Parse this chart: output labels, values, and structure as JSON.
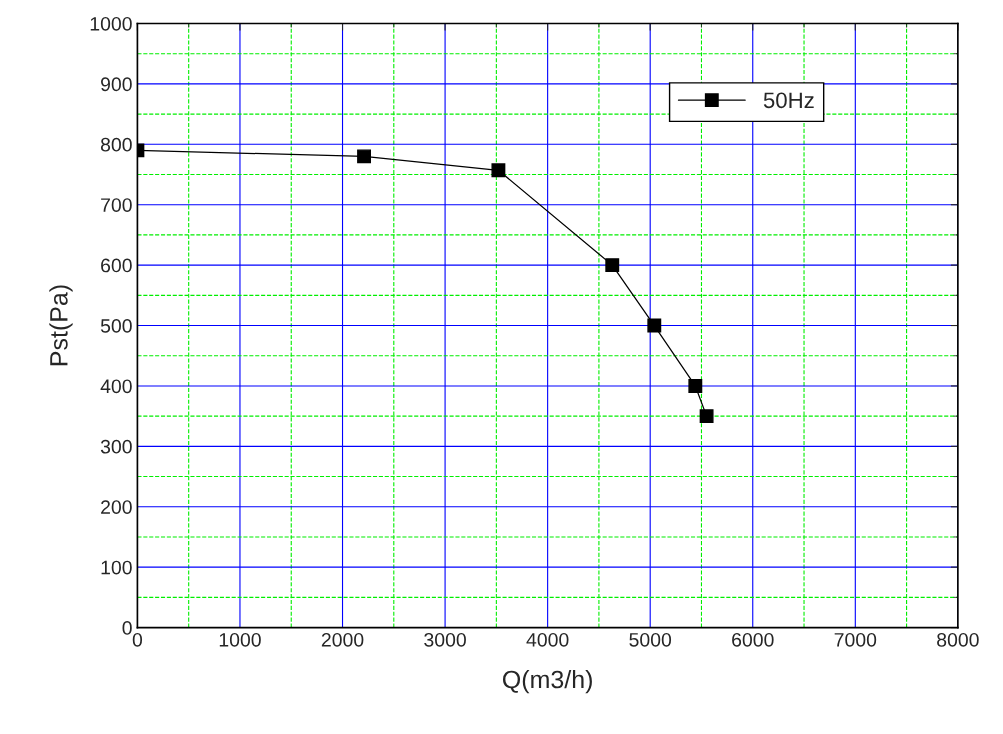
{
  "chart_data": {
    "type": "line",
    "xlabel": "Q(m3/h)",
    "ylabel": "Pst(Pa)",
    "series": [
      {
        "name": "50Hz",
        "color": "#000000",
        "x": [
          0,
          2210,
          3520,
          4630,
          5040,
          5440,
          5550
        ],
        "values": [
          790,
          780,
          757,
          600,
          500,
          400,
          350
        ]
      }
    ],
    "xlim": [
      0,
      8000
    ],
    "xticks": [
      0,
      {
        "value": 500,
        "label": null
      },
      1000,
      {
        "value": 1500,
        "label": null
      },
      2000,
      {
        "value": 2500,
        "label": null
      },
      3000,
      {
        "value": 3500,
        "label": null
      },
      4000,
      {
        "value": 4500,
        "label": null
      },
      5000,
      {
        "value": 5500,
        "label": null
      },
      6000,
      {
        "value": 6500,
        "label": null
      },
      7000,
      {
        "value": 7500,
        "label": null
      },
      8000
    ],
    "ylim": [
      0,
      1000
    ],
    "yticks": [
      0,
      {
        "value": 50,
        "label": null
      },
      100,
      {
        "value": 150,
        "label": null
      },
      200,
      {
        "value": 250,
        "label": null
      },
      300,
      {
        "value": 350,
        "label": null
      },
      400,
      {
        "value": 450,
        "label": null
      },
      500,
      {
        "value": 550,
        "label": null
      },
      600,
      {
        "value": 650,
        "label": null
      },
      700,
      {
        "value": 750,
        "label": null
      },
      800,
      {
        "value": 850,
        "label": null
      },
      900,
      {
        "value": 950,
        "label": null
      },
      1000
    ],
    "grid": true,
    "legend": "top right",
    "marker": "square",
    "line_style": "solid"
  }
}
